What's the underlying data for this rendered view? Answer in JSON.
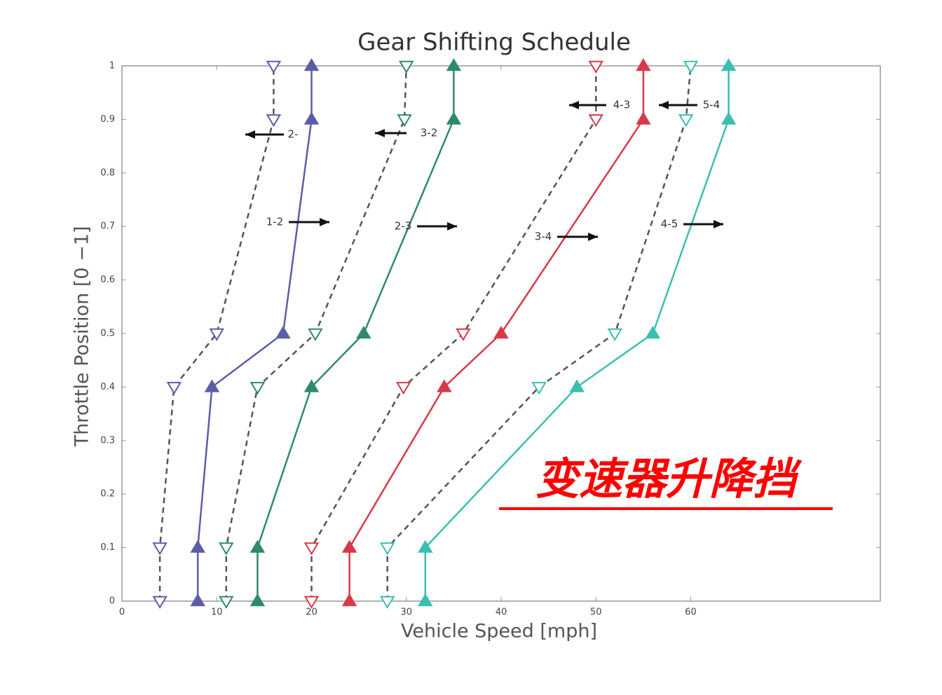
{
  "chart_data": {
    "type": "line",
    "title": "Gear Shifting Schedule",
    "x_label": "Vehicle Speed [mph]",
    "y_label": "Throttle Position [0 −1]",
    "xlim": [
      0,
      80
    ],
    "xticks": [
      0,
      10,
      20,
      30,
      40,
      50,
      60
    ],
    "ylim": [
      0,
      1
    ],
    "yticks": [
      0,
      0.1,
      0.2,
      0.3,
      0.4,
      0.5,
      0.6,
      0.7,
      0.8,
      0.9,
      1
    ],
    "series": [
      {
        "color": "#5b5ea6",
        "dashed": false,
        "marker": "up",
        "x": [
          8,
          8,
          9.5,
          17,
          20,
          20
        ],
        "values": [
          0,
          0.1,
          0.4,
          0.5,
          0.9,
          1
        ]
      },
      {
        "color": "#5b5ea6",
        "dashed": true,
        "marker": "down",
        "x": [
          4,
          4,
          5.5,
          10,
          16,
          16
        ],
        "values": [
          0,
          0.1,
          0.4,
          0.5,
          0.9,
          1
        ]
      },
      {
        "color": "#2e8b6a",
        "dashed": false,
        "marker": "up",
        "x": [
          14.3,
          14.3,
          20,
          25.5,
          35,
          35
        ],
        "values": [
          0,
          0.1,
          0.4,
          0.5,
          0.9,
          1
        ]
      },
      {
        "color": "#2e8b6a",
        "dashed": true,
        "marker": "down",
        "x": [
          11,
          11,
          14.3,
          20.4,
          29.8,
          30
        ],
        "values": [
          0,
          0.1,
          0.4,
          0.5,
          0.9,
          1
        ]
      },
      {
        "color": "#d63a4a",
        "dashed": false,
        "marker": "up",
        "x": [
          24,
          24,
          34,
          40,
          55,
          55
        ],
        "values": [
          0,
          0.1,
          0.4,
          0.5,
          0.9,
          1
        ]
      },
      {
        "color": "#d63a4a",
        "dashed": true,
        "marker": "down",
        "x": [
          20,
          20,
          29.7,
          36,
          50,
          50
        ],
        "values": [
          0,
          0.1,
          0.4,
          0.5,
          0.9,
          1
        ]
      },
      {
        "color": "#3bbfb0",
        "dashed": false,
        "marker": "up",
        "x": [
          32,
          32,
          48,
          56,
          64,
          64
        ],
        "values": [
          0,
          0.1,
          0.4,
          0.5,
          0.9,
          1
        ]
      },
      {
        "color": "#3bbfb0",
        "dashed": true,
        "marker": "down",
        "x": [
          28,
          28,
          44,
          52,
          59.5,
          60
        ],
        "values": [
          0,
          0.1,
          0.4,
          0.5,
          0.9,
          1
        ]
      }
    ],
    "annotations": [
      "2-",
      "3-2",
      "4-3",
      "5-4",
      "1-2",
      "2-3",
      "3-4",
      "4-5"
    ],
    "overlay_text": "变速器升降挡"
  }
}
